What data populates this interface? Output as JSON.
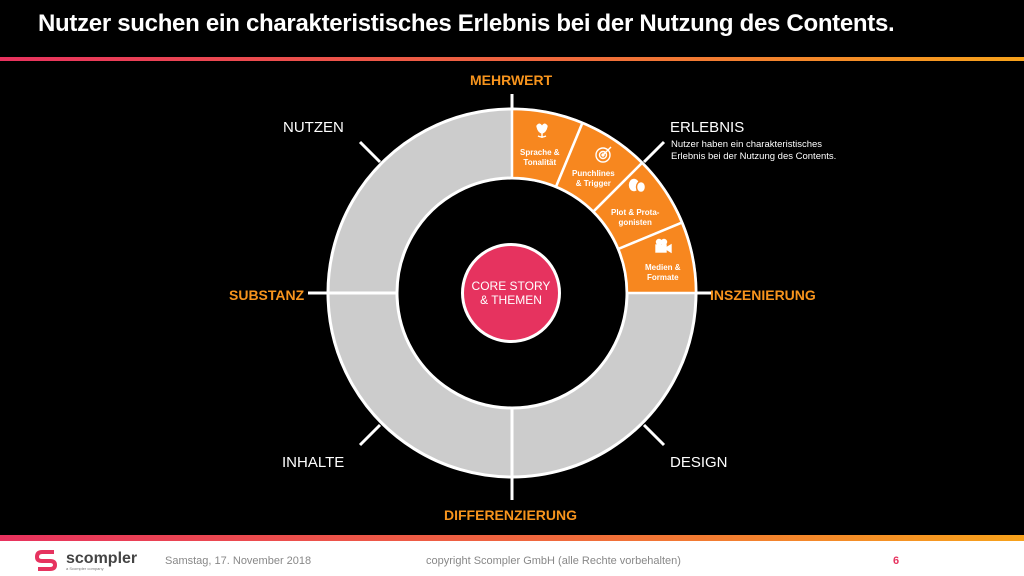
{
  "title": "Nutzer suchen ein charakteristisches  Erlebnis bei der Nutzung des Contents.",
  "labels": {
    "mehrwert": "MEHRWERT",
    "nutzen": "NUTZEN",
    "erlebnis": "ERLEBNIS",
    "erlebnis_desc_1": "Nutzer haben ein charakteristisches",
    "erlebnis_desc_2": "Erlebnis bei der Nutzung des Contents.",
    "substanz": "SUBSTANZ",
    "inszenierung": "INSZENIERUNG",
    "inhalte": "INHALTE",
    "design": "DESIGN",
    "differenzierung": "DIFFERENZIERUNG"
  },
  "segments": [
    {
      "line1": "Sprache &",
      "line2": "Tonalität",
      "icon": "tulip-icon"
    },
    {
      "line1": "Punchlines",
      "line2": "& Trigger",
      "icon": "target-icon"
    },
    {
      "line1": "Plot & Prota-",
      "line2": "gonisten",
      "icon": "theater-masks-icon"
    },
    {
      "line1": "Medien &",
      "line2": "Formate",
      "icon": "video-camera-icon"
    }
  ],
  "core": {
    "line1": "CORE STORY",
    "line2": "& THEMEN"
  },
  "footer": {
    "logo_text": "scompler",
    "logo_sub": "a Scompler company",
    "date": "Samstag, 17. November 2018",
    "copyright": "copyright Scompler GmbH (alle Rechte vorbehalten)",
    "page": "6"
  },
  "colors": {
    "accent_orange": "#f7941d",
    "segment_orange": "#f7871f",
    "core_pink": "#e6335f",
    "ring_gray": "#cccccc"
  }
}
